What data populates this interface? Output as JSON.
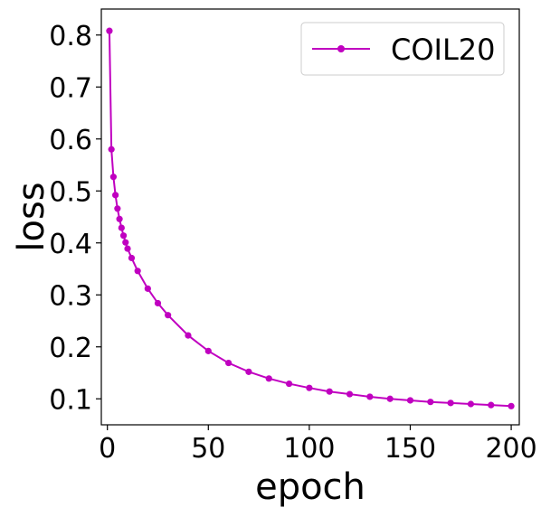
{
  "chart_data": {
    "type": "line",
    "title": "",
    "xlabel": "epoch",
    "ylabel": "loss",
    "xlim": [
      -3,
      204
    ],
    "ylim": [
      0.05,
      0.85
    ],
    "xticks": [
      0,
      50,
      100,
      150,
      200
    ],
    "xtick_labels": [
      "0",
      "50",
      "100",
      "150",
      "200"
    ],
    "yticks": [
      0.1,
      0.2,
      0.3,
      0.4,
      0.5,
      0.6,
      0.7,
      0.8
    ],
    "ytick_labels": [
      "0.1",
      "0.2",
      "0.3",
      "0.4",
      "0.5",
      "0.6",
      "0.7",
      "0.8"
    ],
    "grid": false,
    "legend_position": "top-right",
    "series": [
      {
        "name": "COIL20",
        "color": "#c000c0",
        "marker": "circle",
        "x": [
          1,
          2,
          3,
          4,
          5,
          6,
          7,
          8,
          9,
          10,
          12,
          15,
          20,
          25,
          30,
          40,
          50,
          60,
          70,
          80,
          90,
          100,
          110,
          120,
          130,
          140,
          150,
          160,
          170,
          180,
          190,
          200
        ],
        "y": [
          0.808,
          0.58,
          0.527,
          0.492,
          0.466,
          0.446,
          0.429,
          0.414,
          0.401,
          0.389,
          0.371,
          0.346,
          0.312,
          0.284,
          0.261,
          0.222,
          0.192,
          0.169,
          0.152,
          0.139,
          0.129,
          0.121,
          0.114,
          0.109,
          0.104,
          0.1,
          0.097,
          0.094,
          0.092,
          0.09,
          0.088,
          0.086
        ]
      }
    ]
  }
}
